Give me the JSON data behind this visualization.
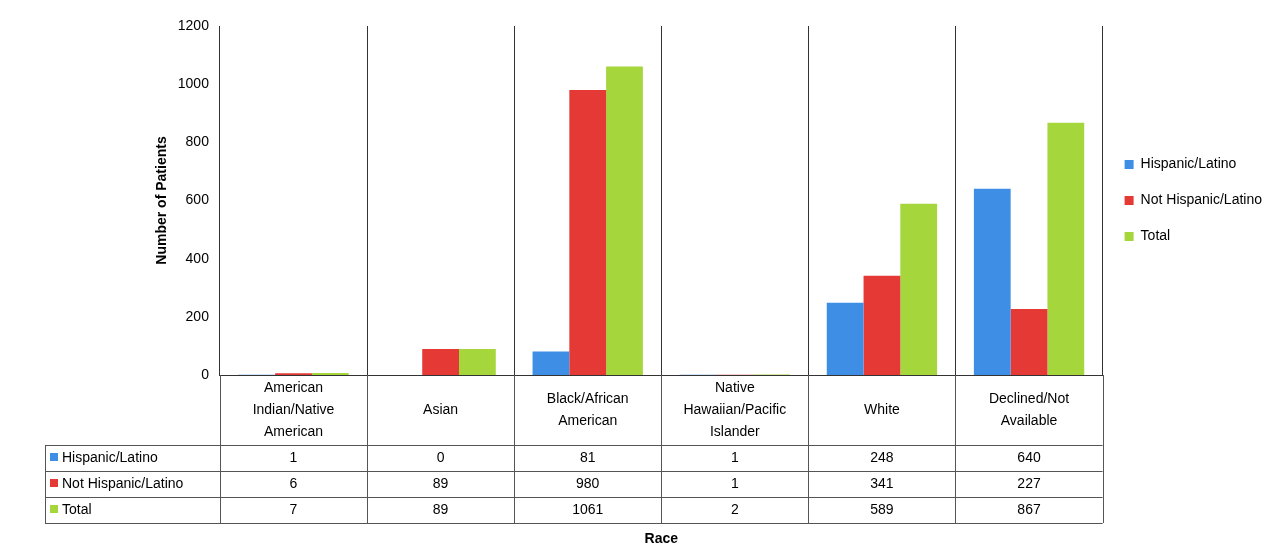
{
  "chart_data": {
    "type": "bar",
    "categories": [
      "American Indian/Native American",
      "Asian",
      "Black/African American",
      "Native Hawaiian/Pacific Islander",
      "White",
      "Declined/Not Available"
    ],
    "series": [
      {
        "name": "Hispanic/Latino",
        "color": "#3f8ee6",
        "values": [
          1,
          0,
          81,
          1,
          248,
          640
        ]
      },
      {
        "name": "Not Hispanic/Latino",
        "color": "#e53935",
        "values": [
          6,
          89,
          980,
          1,
          341,
          227
        ]
      },
      {
        "name": "Total",
        "color": "#a5d63c",
        "values": [
          7,
          89,
          1061,
          2,
          589,
          867
        ]
      }
    ],
    "annotations": [
      "Race"
    ],
    "ylabel": "Number of Patients",
    "ylim": [
      0,
      1200
    ],
    "yticks": [
      0,
      200,
      400,
      600,
      800,
      1000,
      1200
    ],
    "grid": "x",
    "legend": "right",
    "data_labels": true
  }
}
